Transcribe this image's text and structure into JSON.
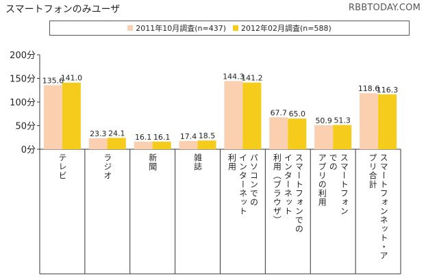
{
  "page": {
    "title": "スマートフォンのみユーザ",
    "watermark": "RBBTODAY.COM"
  },
  "colors": {
    "series1": "#fbd0b0",
    "series2": "#f6cc1c",
    "axis": "#333333",
    "text": "#222222"
  },
  "chart_data": {
    "type": "bar",
    "title": "スマートフォンのみユーザ",
    "xlabel": "",
    "ylabel": "",
    "ylim": [
      0,
      200
    ],
    "yticks": [
      0,
      50,
      100,
      150,
      200
    ],
    "ytick_labels": [
      "0分",
      "50分",
      "100分",
      "150分",
      "200分"
    ],
    "legend_position": "top",
    "categories": [
      "テレビ",
      "ラジオ",
      "新聞",
      "雑誌",
      "パソコンでのインターネット利用",
      "スマートフォンでのインターネット利用（ブラウザ）",
      "スマートフォンでのアプリの利用",
      "スマートフォンネット・アプリ合計"
    ],
    "category_label_columns": [
      [
        "テレビ"
      ],
      [
        "ラジオ"
      ],
      [
        "新聞"
      ],
      [
        "雑誌"
      ],
      [
        "パソコンでの",
        "インターネット",
        "利用"
      ],
      [
        "スマートフォンでの",
        "インターネット",
        "利用（ブラウザ）"
      ],
      [
        "スマートフォン",
        "での",
        "アプリの利用"
      ],
      [
        "スマートフォンネット・ア",
        "プリ合計"
      ]
    ],
    "series": [
      {
        "name": "2011年10月調査(n=437)",
        "values": [
          135.6,
          23.3,
          16.1,
          17.4,
          144.3,
          67.7,
          50.9,
          118.6
        ]
      },
      {
        "name": "2012年02月調査(n=588)",
        "values": [
          141.0,
          24.1,
          16.1,
          18.5,
          141.2,
          65.0,
          51.3,
          116.3
        ]
      }
    ]
  }
}
